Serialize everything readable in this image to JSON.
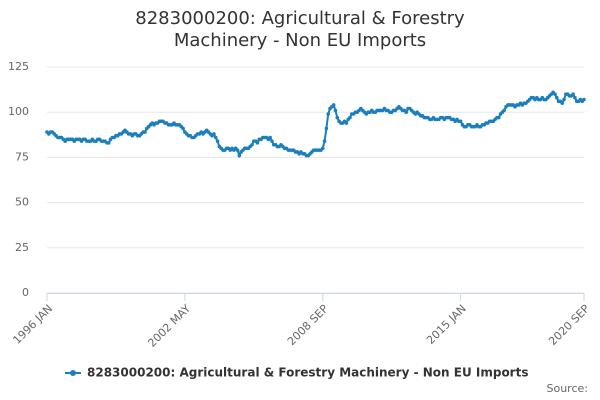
{
  "chart_data": {
    "type": "line",
    "title": "8283000200: Agricultural & Forestry Machinery - Non EU Imports",
    "source": "Source:",
    "x": [
      "1996 JAN",
      "1996 FEB",
      "1996 MAR",
      "1996 APR",
      "1996 MAY",
      "1996 JUN",
      "1996 JUL",
      "1996 AUG",
      "1996 SEP",
      "1996 OCT",
      "1996 NOV",
      "1996 DEC",
      "1997 JAN",
      "1997 FEB",
      "1997 MAR",
      "1997 APR",
      "1997 MAY",
      "1997 JUN",
      "1997 JUL",
      "1997 AUG",
      "1997 SEP",
      "1997 OCT",
      "1997 NOV",
      "1997 DEC",
      "1998 JAN",
      "1998 FEB",
      "1998 MAR",
      "1998 APR",
      "1998 MAY",
      "1998 JUN",
      "1998 JUL",
      "1998 AUG",
      "1998 SEP",
      "1998 OCT",
      "1998 NOV",
      "1998 DEC",
      "1999 JAN",
      "1999 FEB",
      "1999 MAR",
      "1999 APR",
      "1999 MAY",
      "1999 JUN",
      "1999 JUL",
      "1999 AUG",
      "1999 SEP",
      "1999 OCT",
      "1999 NOV",
      "1999 DEC",
      "2000 JAN",
      "2000 FEB",
      "2000 MAR",
      "2000 APR",
      "2000 MAY",
      "2000 JUN",
      "2000 JUL",
      "2000 AUG",
      "2000 SEP",
      "2000 OCT",
      "2000 NOV",
      "2000 DEC",
      "2001 JAN",
      "2001 FEB",
      "2001 MAR",
      "2001 APR",
      "2001 MAY",
      "2001 JUN",
      "2001 JUL",
      "2001 AUG",
      "2001 SEP",
      "2001 OCT",
      "2001 NOV",
      "2001 DEC",
      "2002 JAN",
      "2002 FEB",
      "2002 MAR",
      "2002 APR",
      "2002 MAY",
      "2002 JUN",
      "2002 JUL",
      "2002 AUG",
      "2002 SEP",
      "2002 OCT",
      "2002 NOV",
      "2002 DEC",
      "2003 JAN",
      "2003 FEB",
      "2003 MAR",
      "2003 APR",
      "2003 MAY",
      "2003 JUN",
      "2003 JUL",
      "2003 AUG",
      "2003 SEP",
      "2003 OCT",
      "2003 NOV",
      "2003 DEC",
      "2004 JAN",
      "2004 FEB",
      "2004 MAR",
      "2004 APR",
      "2004 MAY",
      "2004 JUN",
      "2004 JUL",
      "2004 AUG",
      "2004 SEP",
      "2004 OCT",
      "2004 NOV",
      "2004 DEC",
      "2005 JAN",
      "2005 FEB",
      "2005 MAR",
      "2005 APR",
      "2005 MAY",
      "2005 JUN",
      "2005 JUL",
      "2005 AUG",
      "2005 SEP",
      "2005 OCT",
      "2005 NOV",
      "2005 DEC",
      "2006 JAN",
      "2006 FEB",
      "2006 MAR",
      "2006 APR",
      "2006 MAY",
      "2006 JUN",
      "2006 JUL",
      "2006 AUG",
      "2006 SEP",
      "2006 OCT",
      "2006 NOV",
      "2006 DEC",
      "2007 JAN",
      "2007 FEB",
      "2007 MAR",
      "2007 APR",
      "2007 MAY",
      "2007 JUN",
      "2007 JUL",
      "2007 AUG",
      "2007 SEP",
      "2007 OCT",
      "2007 NOV",
      "2007 DEC",
      "2008 JAN",
      "2008 FEB",
      "2008 MAR",
      "2008 APR",
      "2008 MAY",
      "2008 JUN",
      "2008 JUL",
      "2008 AUG",
      "2008 SEP",
      "2008 OCT",
      "2008 NOV",
      "2008 DEC",
      "2009 JAN",
      "2009 FEB",
      "2009 MAR",
      "2009 APR",
      "2009 MAY",
      "2009 JUN",
      "2009 JUL",
      "2009 AUG",
      "2009 SEP",
      "2009 OCT",
      "2009 NOV",
      "2009 DEC",
      "2010 JAN",
      "2010 FEB",
      "2010 MAR",
      "2010 APR",
      "2010 MAY",
      "2010 JUN",
      "2010 JUL",
      "2010 AUG",
      "2010 SEP",
      "2010 OCT",
      "2010 NOV",
      "2010 DEC",
      "2011 JAN",
      "2011 FEB",
      "2011 MAR",
      "2011 APR",
      "2011 MAY",
      "2011 JUN",
      "2011 JUL",
      "2011 AUG",
      "2011 SEP",
      "2011 OCT",
      "2011 NOV",
      "2011 DEC",
      "2012 JAN",
      "2012 FEB",
      "2012 MAR",
      "2012 APR",
      "2012 MAY",
      "2012 JUN",
      "2012 JUL",
      "2012 AUG",
      "2012 SEP",
      "2012 OCT",
      "2012 NOV",
      "2012 DEC",
      "2013 JAN",
      "2013 FEB",
      "2013 MAR",
      "2013 APR",
      "2013 MAY",
      "2013 JUN",
      "2013 JUL",
      "2013 AUG",
      "2013 SEP",
      "2013 OCT",
      "2013 NOV",
      "2013 DEC",
      "2014 JAN",
      "2014 FEB",
      "2014 MAR",
      "2014 APR",
      "2014 MAY",
      "2014 JUN",
      "2014 JUL",
      "2014 AUG",
      "2014 SEP",
      "2014 OCT",
      "2014 NOV",
      "2014 DEC",
      "2015 JAN",
      "2015 FEB",
      "2015 MAR",
      "2015 APR",
      "2015 MAY",
      "2015 JUN",
      "2015 JUL",
      "2015 AUG",
      "2015 SEP",
      "2015 OCT",
      "2015 NOV",
      "2015 DEC",
      "2016 JAN",
      "2016 FEB",
      "2016 MAR",
      "2016 APR",
      "2016 MAY",
      "2016 JUN",
      "2016 JUL",
      "2016 AUG",
      "2016 SEP",
      "2016 OCT",
      "2016 NOV",
      "2016 DEC",
      "2017 JAN",
      "2017 FEB",
      "2017 MAR",
      "2017 APR",
      "2017 MAY",
      "2017 JUN",
      "2017 JUL",
      "2017 AUG",
      "2017 SEP",
      "2017 OCT",
      "2017 NOV",
      "2017 DEC",
      "2018 JAN",
      "2018 FEB",
      "2018 MAR",
      "2018 APR",
      "2018 MAY",
      "2018 JUN",
      "2018 JUL",
      "2018 AUG",
      "2018 SEP",
      "2018 OCT",
      "2018 NOV",
      "2018 DEC",
      "2019 JAN",
      "2019 FEB",
      "2019 MAR",
      "2019 APR",
      "2019 MAY",
      "2019 JUN",
      "2019 JUL",
      "2019 AUG",
      "2019 SEP",
      "2019 OCT",
      "2019 NOV",
      "2019 DEC",
      "2020 JAN",
      "2020 FEB",
      "2020 MAR",
      "2020 APR",
      "2020 MAY",
      "2020 JUN",
      "2020 JUL",
      "2020 AUG",
      "2020 SEP"
    ],
    "series": [
      {
        "name": "8283000200: Agricultural & Forestry Machinery - Non EU Imports",
        "color": "#1b7fbd",
        "values": [
          89,
          88,
          89,
          89,
          88,
          87,
          86,
          86,
          86,
          85,
          84,
          85,
          85,
          85,
          85,
          84,
          85,
          85,
          85,
          84,
          85,
          85,
          84,
          84,
          84,
          85,
          84,
          84,
          85,
          85,
          84,
          84,
          84,
          83,
          83,
          85,
          86,
          86,
          87,
          87,
          88,
          88,
          89,
          90,
          89,
          88,
          88,
          87,
          88,
          88,
          87,
          87,
          88,
          89,
          89,
          91,
          92,
          93,
          94,
          93,
          94,
          94,
          95,
          95,
          95,
          94,
          94,
          93,
          93,
          93,
          94,
          93,
          93,
          93,
          92,
          91,
          89,
          88,
          87,
          87,
          86,
          86,
          87,
          88,
          88,
          89,
          88,
          89,
          90,
          89,
          88,
          87,
          88,
          86,
          84,
          81,
          80,
          79,
          79,
          80,
          80,
          79,
          80,
          79,
          80,
          79,
          76,
          78,
          79,
          80,
          80,
          80,
          81,
          82,
          84,
          84,
          83,
          85,
          85,
          86,
          86,
          86,
          85,
          86,
          84,
          82,
          82,
          81,
          81,
          82,
          81,
          80,
          80,
          79,
          79,
          79,
          79,
          78,
          78,
          77,
          78,
          77,
          77,
          76,
          76,
          77,
          78,
          79,
          79,
          79,
          79,
          79,
          80,
          84,
          91,
          99,
          102,
          103,
          104,
          101,
          97,
          95,
          94,
          94,
          95,
          94,
          96,
          97,
          99,
          99,
          100,
          100,
          101,
          102,
          101,
          100,
          99,
          100,
          100,
          101,
          100,
          100,
          101,
          101,
          101,
          101,
          102,
          101,
          101,
          100,
          100,
          101,
          101,
          102,
          103,
          102,
          101,
          101,
          100,
          102,
          102,
          101,
          100,
          99,
          100,
          99,
          98,
          98,
          97,
          97,
          97,
          96,
          96,
          97,
          96,
          96,
          96,
          97,
          97,
          96,
          97,
          97,
          97,
          96,
          96,
          95,
          96,
          95,
          95,
          93,
          92,
          92,
          93,
          93,
          92,
          92,
          92,
          93,
          92,
          92,
          93,
          93,
          94,
          94,
          95,
          95,
          95,
          96,
          97,
          97,
          99,
          100,
          101,
          103,
          104,
          104,
          104,
          104,
          103,
          104,
          104,
          105,
          104,
          105,
          105,
          106,
          107,
          108,
          108,
          107,
          108,
          107,
          107,
          108,
          107,
          107,
          108,
          109,
          110,
          111,
          110,
          108,
          106,
          106,
          105,
          107,
          110,
          110,
          109,
          109,
          110,
          108,
          106,
          106,
          107,
          106,
          107
        ]
      }
    ],
    "xticks": [
      "1996 JAN",
      "2002 MAY",
      "2008 SEP",
      "2015 JAN",
      "2020 SEP"
    ],
    "ylim": [
      0,
      125
    ],
    "yticks": [
      0,
      25,
      50,
      75,
      100,
      125
    ],
    "grid": true
  }
}
